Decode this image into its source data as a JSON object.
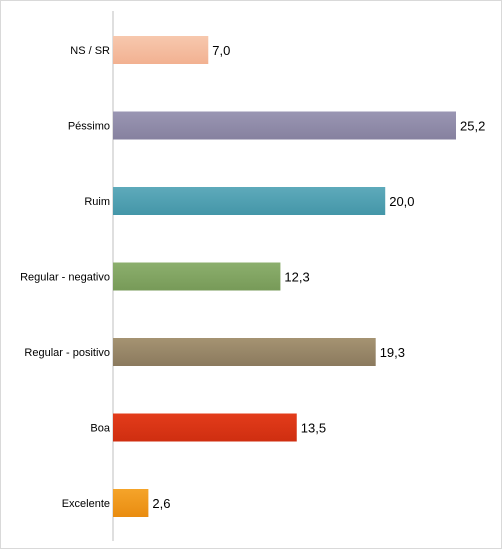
{
  "chart_data": {
    "type": "bar",
    "orientation": "horizontal",
    "categories": [
      "NS / SR",
      "Péssimo",
      "Ruim",
      "Regular - negativo",
      "Regular - positivo",
      "Boa",
      "Excelente"
    ],
    "values": [
      7.0,
      25.2,
      20.0,
      12.3,
      19.3,
      13.5,
      2.6
    ],
    "value_labels": [
      "7,0",
      "25,2",
      "20,0",
      "12,3",
      "19,3",
      "13,5",
      "2,6"
    ],
    "bar_colors": [
      "#f2b191",
      "#86819f",
      "#4496a8",
      "#779a58",
      "#8b7a5e",
      "#cf2e10",
      "#e98c10"
    ],
    "bar_gradient_tops": [
      "#f7c8ae",
      "#9a96b3",
      "#5eaabb",
      "#8caf6d",
      "#a59372",
      "#e33c1b",
      "#f5a42a"
    ],
    "xlim": [
      0,
      25.2
    ],
    "grid": false,
    "legend": "none"
  }
}
